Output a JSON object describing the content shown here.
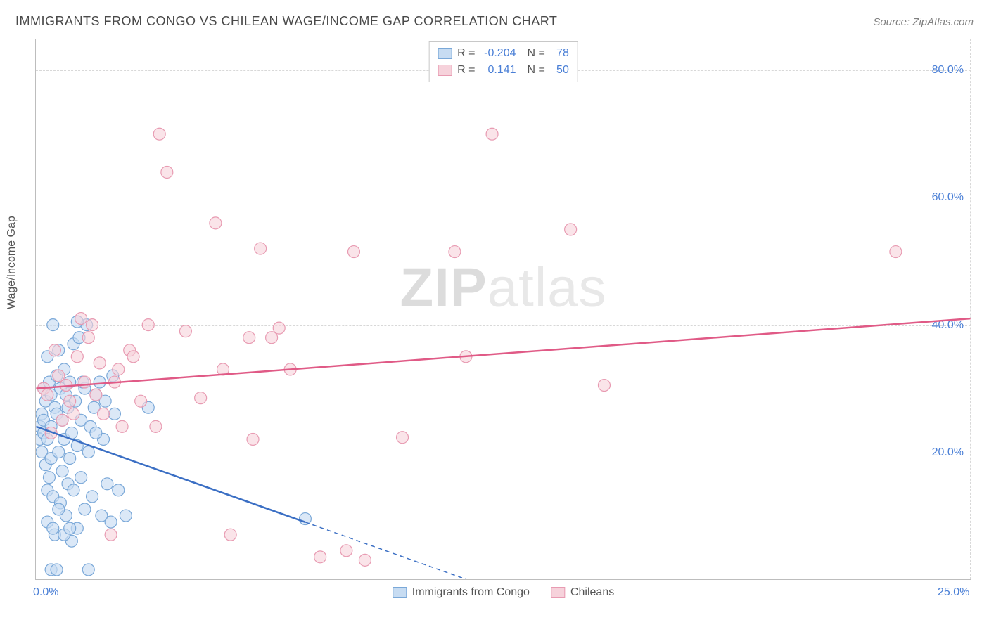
{
  "title": "IMMIGRANTS FROM CONGO VS CHILEAN WAGE/INCOME GAP CORRELATION CHART",
  "source_prefix": "Source: ",
  "source": "ZipAtlas.com",
  "y_axis_label": "Wage/Income Gap",
  "watermark": {
    "bold": "ZIP",
    "rest": "atlas"
  },
  "chart": {
    "type": "scatter",
    "xlim": [
      0,
      25
    ],
    "ylim": [
      0,
      85
    ],
    "yticks": [
      20,
      40,
      60,
      80
    ],
    "ytick_labels": [
      "20.0%",
      "40.0%",
      "60.0%",
      "80.0%"
    ],
    "xticks": [
      0,
      25
    ],
    "xtick_labels": [
      "0.0%",
      "25.0%"
    ],
    "grid_color": "#d8d8d8",
    "background_color": "#ffffff",
    "axis_color": "#bdbdbd",
    "tick_label_color": "#4a7fd6",
    "marker_radius": 8.5,
    "series": [
      {
        "name": "Immigrants from Congo",
        "label_key": "congo",
        "fill": "#c7dcf2",
        "stroke": "#7aa8d8",
        "fill_opacity": 0.65,
        "line_color": "#3b6fc4",
        "R": "-0.204",
        "N": "78",
        "trend": {
          "x1": 0,
          "y1": 24,
          "x2": 11.5,
          "y2": 0,
          "solid_until_x": 7.2
        },
        "points": [
          [
            0.1,
            24
          ],
          [
            0.1,
            22
          ],
          [
            0.15,
            20
          ],
          [
            0.15,
            26
          ],
          [
            0.2,
            25
          ],
          [
            0.2,
            23
          ],
          [
            0.2,
            30
          ],
          [
            0.25,
            18
          ],
          [
            0.25,
            28
          ],
          [
            0.3,
            22
          ],
          [
            0.3,
            35
          ],
          [
            0.3,
            14
          ],
          [
            0.35,
            31
          ],
          [
            0.35,
            16
          ],
          [
            0.4,
            29
          ],
          [
            0.4,
            24
          ],
          [
            0.4,
            19
          ],
          [
            0.45,
            40
          ],
          [
            0.45,
            13
          ],
          [
            0.5,
            27
          ],
          [
            0.5,
            7
          ],
          [
            0.55,
            32
          ],
          [
            0.55,
            26
          ],
          [
            0.6,
            36
          ],
          [
            0.6,
            20
          ],
          [
            0.65,
            12
          ],
          [
            0.65,
            30
          ],
          [
            0.7,
            25
          ],
          [
            0.7,
            17
          ],
          [
            0.75,
            33
          ],
          [
            0.75,
            22
          ],
          [
            0.8,
            29
          ],
          [
            0.8,
            10
          ],
          [
            0.85,
            27
          ],
          [
            0.85,
            15
          ],
          [
            0.9,
            31
          ],
          [
            0.9,
            19
          ],
          [
            0.95,
            6
          ],
          [
            0.95,
            23
          ],
          [
            1.0,
            37
          ],
          [
            1.0,
            14
          ],
          [
            1.05,
            28
          ],
          [
            1.1,
            21
          ],
          [
            1.1,
            8
          ],
          [
            1.15,
            38
          ],
          [
            1.2,
            25
          ],
          [
            1.2,
            16
          ],
          [
            1.3,
            30
          ],
          [
            1.3,
            11
          ],
          [
            1.35,
            40
          ],
          [
            1.4,
            20
          ],
          [
            1.45,
            24
          ],
          [
            1.5,
            13
          ],
          [
            1.55,
            27
          ],
          [
            1.6,
            29
          ],
          [
            1.7,
            31
          ],
          [
            1.8,
            22
          ],
          [
            1.9,
            15
          ],
          [
            2.0,
            9
          ],
          [
            2.05,
            32
          ],
          [
            2.1,
            26
          ],
          [
            0.4,
            1.5
          ],
          [
            0.55,
            1.5
          ],
          [
            1.4,
            1.5
          ],
          [
            0.3,
            9
          ],
          [
            0.45,
            8
          ],
          [
            0.6,
            11
          ],
          [
            0.75,
            7
          ],
          [
            0.9,
            8
          ],
          [
            1.1,
            40.5
          ],
          [
            1.25,
            31
          ],
          [
            1.6,
            23
          ],
          [
            1.75,
            10
          ],
          [
            1.85,
            28
          ],
          [
            2.2,
            14
          ],
          [
            2.4,
            10
          ],
          [
            3.0,
            27
          ],
          [
            7.2,
            9.5
          ]
        ]
      },
      {
        "name": "Chileans",
        "label_key": "chileans",
        "fill": "#f6d2db",
        "stroke": "#e89bb2",
        "fill_opacity": 0.6,
        "line_color": "#e05a86",
        "R": "0.141",
        "N": "50",
        "trend": {
          "x1": 0,
          "y1": 30,
          "x2": 25,
          "y2": 41
        },
        "points": [
          [
            0.2,
            30
          ],
          [
            0.3,
            29
          ],
          [
            0.5,
            36
          ],
          [
            0.6,
            32
          ],
          [
            0.8,
            30.5
          ],
          [
            0.9,
            28
          ],
          [
            1.0,
            26
          ],
          [
            1.1,
            35
          ],
          [
            1.2,
            41
          ],
          [
            1.3,
            31
          ],
          [
            1.4,
            38
          ],
          [
            1.5,
            40
          ],
          [
            1.6,
            29
          ],
          [
            1.7,
            34
          ],
          [
            1.8,
            26
          ],
          [
            2.0,
            7
          ],
          [
            2.1,
            31
          ],
          [
            2.2,
            33
          ],
          [
            2.3,
            24
          ],
          [
            2.5,
            36
          ],
          [
            2.6,
            35
          ],
          [
            2.8,
            28
          ],
          [
            3.0,
            40
          ],
          [
            3.2,
            24
          ],
          [
            3.3,
            70
          ],
          [
            3.5,
            64
          ],
          [
            4.0,
            39
          ],
          [
            4.4,
            28.5
          ],
          [
            4.8,
            56
          ],
          [
            5.0,
            33
          ],
          [
            5.2,
            7
          ],
          [
            5.7,
            38
          ],
          [
            5.8,
            22
          ],
          [
            6.0,
            52
          ],
          [
            6.3,
            38
          ],
          [
            6.5,
            39.5
          ],
          [
            6.8,
            33
          ],
          [
            7.6,
            3.5
          ],
          [
            8.3,
            4.5
          ],
          [
            8.5,
            51.5
          ],
          [
            8.8,
            3
          ],
          [
            9.8,
            22.3
          ],
          [
            11.2,
            51.5
          ],
          [
            11.5,
            35
          ],
          [
            12.2,
            70
          ],
          [
            14.3,
            55
          ],
          [
            15.2,
            30.5
          ],
          [
            23.0,
            51.5
          ],
          [
            0.4,
            23
          ],
          [
            0.7,
            25
          ]
        ]
      }
    ]
  },
  "legend_top": {
    "R_label": "R =",
    "N_label": "N ="
  },
  "legend_bottom": {
    "congo": "Immigrants from Congo",
    "chileans": "Chileans"
  }
}
